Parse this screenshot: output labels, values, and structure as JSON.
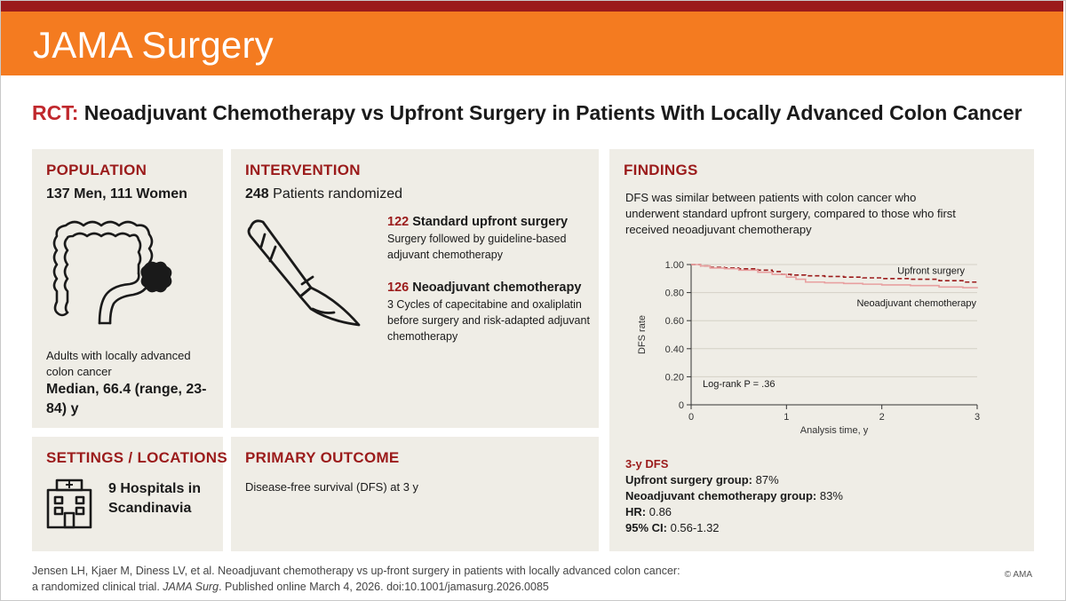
{
  "header": {
    "journal": "JAMA Surgery"
  },
  "title": {
    "prefix": "RCT:",
    "text": "Neoadjuvant Chemotherapy vs Upfront Surgery in Patients With Locally Advanced Colon Cancer"
  },
  "population": {
    "heading": "POPULATION",
    "counts": "137 Men, 111 Women",
    "description": "Adults with locally advanced colon cancer",
    "age": "Median, 66.4 (range, 23-84) y",
    "icon": "colon-icon"
  },
  "intervention": {
    "heading": "INTERVENTION",
    "total_num": "248",
    "total_text": "Patients randomized",
    "icon": "scalpel-icon",
    "arms": [
      {
        "num": "122",
        "name": "Standard upfront surgery",
        "desc": "Surgery followed by guideline-based adjuvant chemotherapy"
      },
      {
        "num": "126",
        "name": "Neoadjuvant chemotherapy",
        "desc": "3 Cycles of capecitabine and oxaliplatin before surgery and risk-adapted adjuvant chemotherapy"
      }
    ]
  },
  "settings": {
    "heading": "SETTINGS / LOCATIONS",
    "text": "9 Hospitals in Scandinavia",
    "icon": "hospital-building-icon"
  },
  "outcome": {
    "heading": "PRIMARY OUTCOME",
    "text": "Disease-free survival (DFS) at 3 y"
  },
  "findings": {
    "heading": "FINDINGS",
    "summary": "DFS was similar between patients with colon cancer who underwent standard upfront surgery, compared to those who first received neoadjuvant chemotherapy",
    "dfs_heading": "3-y DFS",
    "results": [
      {
        "label": "Upfront surgery group:",
        "value": "87%"
      },
      {
        "label": "Neoadjuvant chemotherapy group:",
        "value": "83%"
      },
      {
        "label": "HR:",
        "value": "0.86"
      },
      {
        "label": "95% CI:",
        "value": "0.56-1.32"
      }
    ]
  },
  "chart_data": {
    "type": "line",
    "xlabel": "Analysis time, y",
    "ylabel": "DFS rate",
    "xlim": [
      0,
      3
    ],
    "ylim": [
      0,
      1
    ],
    "xticks": [
      0,
      1,
      2,
      3
    ],
    "xtick_labels": [
      "0",
      "1",
      "2",
      "3"
    ],
    "yticks": [
      0,
      0.2,
      0.4,
      0.6,
      0.8,
      1.0
    ],
    "ytick_labels": [
      "0",
      "0.20",
      "0.40",
      "0.60",
      "0.80",
      "1.00"
    ],
    "annotation": "Log-rank P = .36",
    "grid": "horizontal",
    "series": [
      {
        "name": "Upfront surgery",
        "color": "#9b1b1b",
        "style": "dashed",
        "x": [
          0,
          0.1,
          0.2,
          0.35,
          0.5,
          0.7,
          0.85,
          0.95,
          1.05,
          1.2,
          1.4,
          1.6,
          1.8,
          2.0,
          2.3,
          2.6,
          2.85,
          3.0
        ],
        "y": [
          1.0,
          0.99,
          0.98,
          0.975,
          0.97,
          0.96,
          0.95,
          0.93,
          0.925,
          0.92,
          0.915,
          0.91,
          0.905,
          0.9,
          0.895,
          0.885,
          0.875,
          0.87
        ]
      },
      {
        "name": "Neoadjuvant chemotherapy",
        "color": "#e8a0a0",
        "style": "solid",
        "x": [
          0,
          0.1,
          0.2,
          0.35,
          0.5,
          0.7,
          0.85,
          1.0,
          1.1,
          1.2,
          1.4,
          1.6,
          1.8,
          2.0,
          2.3,
          2.6,
          2.85,
          3.0
        ],
        "y": [
          1.0,
          0.99,
          0.975,
          0.97,
          0.96,
          0.945,
          0.93,
          0.91,
          0.895,
          0.875,
          0.87,
          0.865,
          0.86,
          0.855,
          0.85,
          0.84,
          0.835,
          0.83
        ]
      }
    ]
  },
  "footer": {
    "citation_1": "Jensen LH, Kjaer M, Diness LV, et al. Neoadjuvant chemotherapy vs up-front surgery in patients with locally advanced colon cancer:",
    "citation_2a": "a randomized clinical trial.",
    "citation_journal": "JAMA Surg",
    "citation_2b": ". Published online March 4, 2026. doi:10.1001/jamasurg.2026.0085",
    "copyright": "© AMA"
  }
}
